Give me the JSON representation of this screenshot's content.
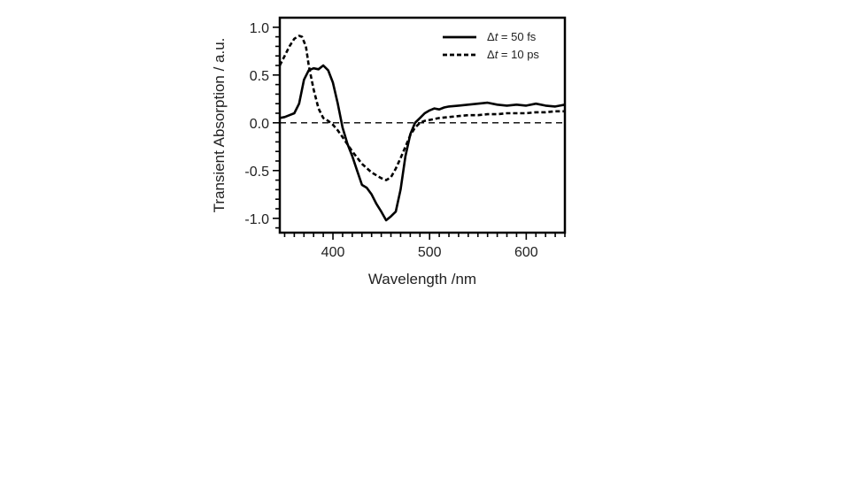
{
  "chart_data": {
    "type": "line",
    "title": "",
    "xlabel": "Wavelength /nm",
    "ylabel": "Transient Absorption / a.u.",
    "xlim": [
      345,
      640
    ],
    "ylim": [
      -1.15,
      1.1
    ],
    "xticks": [
      400,
      500,
      600
    ],
    "yticks": [
      1.0,
      0.5,
      0.0,
      -0.5,
      -1.0
    ],
    "xtick_labels": [
      "400",
      "500",
      "600"
    ],
    "ytick_labels": [
      "1.0",
      "0.5",
      "0.0",
      "-0.5",
      "-1.0"
    ],
    "reference_line": {
      "y": 0.0,
      "style": "dashed"
    },
    "grid": false,
    "legend_position": "top-right",
    "series": [
      {
        "legend_prefix": "Δ",
        "legend_var": "t",
        "legend_suffix": " = 50 fs",
        "line_style": "solid",
        "x": [
          345,
          350,
          355,
          360,
          365,
          370,
          375,
          380,
          385,
          390,
          395,
          400,
          405,
          410,
          415,
          420,
          425,
          430,
          435,
          440,
          445,
          450,
          455,
          460,
          465,
          470,
          475,
          480,
          485,
          490,
          495,
          500,
          505,
          510,
          515,
          520,
          530,
          540,
          550,
          560,
          570,
          580,
          590,
          600,
          610,
          620,
          630,
          640
        ],
        "y": [
          0.05,
          0.06,
          0.08,
          0.1,
          0.2,
          0.45,
          0.55,
          0.57,
          0.56,
          0.6,
          0.55,
          0.42,
          0.2,
          -0.05,
          -0.22,
          -0.35,
          -0.5,
          -0.65,
          -0.68,
          -0.75,
          -0.85,
          -0.93,
          -1.02,
          -0.98,
          -0.93,
          -0.7,
          -0.35,
          -0.12,
          0.0,
          0.05,
          0.1,
          0.13,
          0.15,
          0.14,
          0.16,
          0.17,
          0.18,
          0.19,
          0.2,
          0.21,
          0.19,
          0.18,
          0.19,
          0.18,
          0.2,
          0.18,
          0.17,
          0.19
        ]
      },
      {
        "legend_prefix": "Δ",
        "legend_var": "t",
        "legend_suffix": " = 10 ps",
        "line_style": "dashed",
        "x": [
          345,
          350,
          355,
          360,
          365,
          368,
          372,
          375,
          380,
          385,
          390,
          395,
          400,
          405,
          410,
          420,
          430,
          440,
          450,
          455,
          460,
          465,
          470,
          475,
          480,
          485,
          490,
          495,
          500,
          510,
          520,
          530,
          540,
          550,
          560,
          570,
          580,
          590,
          600,
          610,
          620,
          630,
          640
        ],
        "y": [
          0.6,
          0.7,
          0.8,
          0.88,
          0.91,
          0.9,
          0.8,
          0.6,
          0.35,
          0.15,
          0.05,
          0.02,
          -0.02,
          -0.08,
          -0.15,
          -0.3,
          -0.43,
          -0.52,
          -0.58,
          -0.6,
          -0.57,
          -0.48,
          -0.37,
          -0.25,
          -0.13,
          -0.05,
          0.0,
          0.02,
          0.03,
          0.05,
          0.06,
          0.07,
          0.08,
          0.08,
          0.09,
          0.09,
          0.1,
          0.1,
          0.1,
          0.11,
          0.11,
          0.12,
          0.12
        ]
      }
    ]
  }
}
